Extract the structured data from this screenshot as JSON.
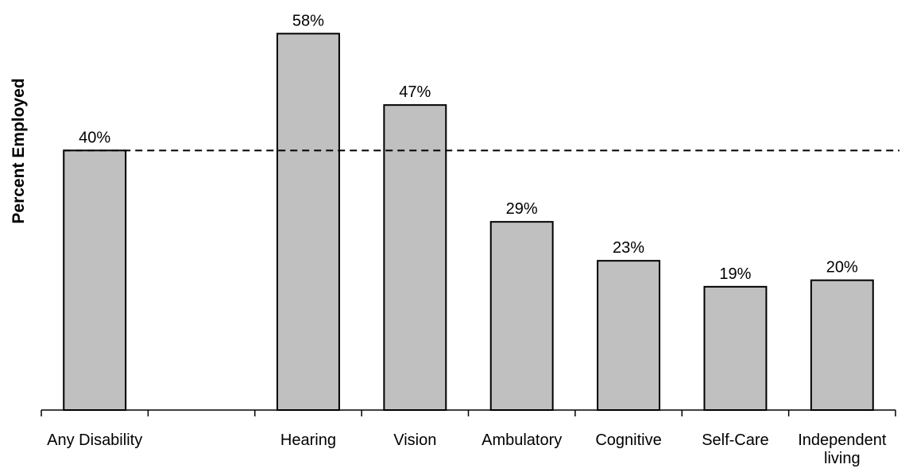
{
  "chart_data": {
    "type": "bar",
    "y_label": "Percent Employed",
    "categories": [
      "Any Disability",
      null,
      "Hearing",
      "Vision",
      "Ambulatory",
      "Cognitive",
      "Self-Care",
      "Independent living"
    ],
    "values": [
      40,
      null,
      58,
      47,
      29,
      23,
      19,
      20
    ],
    "value_labels": [
      "40%",
      null,
      "58%",
      "47%",
      "29%",
      "23%",
      "19%",
      "20%"
    ],
    "color": "#c0c0c0",
    "reference_line": 40,
    "ylim": [
      0,
      60
    ]
  }
}
